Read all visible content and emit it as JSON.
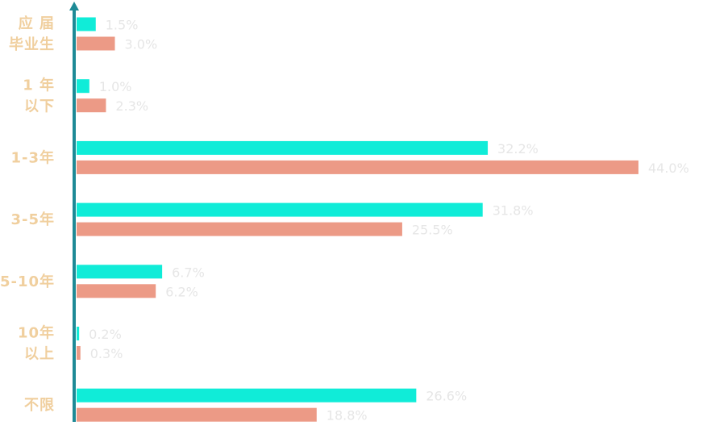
{
  "chart_data": {
    "type": "barh",
    "categories": [
      "应 届\n毕业生",
      "1 年\n以下",
      "1-3年",
      "3-5年",
      "5-10年",
      "10年\n以上",
      "不限"
    ],
    "series": [
      {
        "color": "#10ecd8",
        "values": [
          1.5,
          1.0,
          32.2,
          31.8,
          6.7,
          0.2,
          26.6
        ],
        "value_labels": [
          "1.5%",
          "1.0%",
          "32.2%",
          "31.8%",
          "6.7%",
          "0.2%",
          "26.6%"
        ]
      },
      {
        "color": "#ec9a86",
        "values": [
          3.0,
          2.3,
          44.0,
          25.5,
          6.2,
          0.3,
          18.8
        ],
        "value_labels": [
          "3.0%",
          "2.3%",
          "44.0%",
          "25.5%",
          "6.2%",
          "0.3%",
          "18.8%"
        ]
      }
    ],
    "xlim": [
      0,
      50
    ]
  }
}
